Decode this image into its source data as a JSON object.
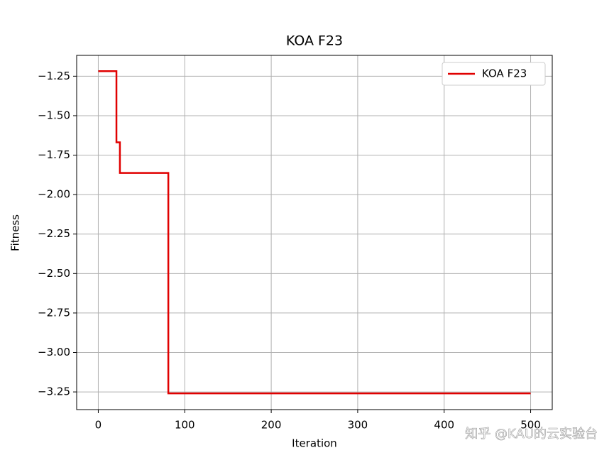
{
  "chart_data": {
    "type": "line",
    "title": "KOA F23",
    "x_label": "Iteration",
    "y_label": "Fitness",
    "x": [
      0,
      21,
      21,
      25,
      25,
      81,
      81,
      500
    ],
    "series": [
      {
        "name": "KOA F23",
        "color": "#e00000",
        "values": [
          -1.218,
          -1.218,
          -1.669,
          -1.669,
          -1.863,
          -1.863,
          -3.259,
          -3.259
        ]
      }
    ],
    "xlim": [
      -25,
      525
    ],
    "ylim": [
      -3.362,
      -1.118
    ],
    "xticks": [
      0,
      100,
      200,
      300,
      400,
      500
    ],
    "yticks": [
      {
        "value": -1.25,
        "label": "−1.25"
      },
      {
        "value": -1.5,
        "label": "−1.50"
      },
      {
        "value": -1.75,
        "label": "−1.75"
      },
      {
        "value": -2.0,
        "label": "−2.00"
      },
      {
        "value": -2.25,
        "label": "−2.25"
      },
      {
        "value": -2.5,
        "label": "−2.50"
      },
      {
        "value": -2.75,
        "label": "−2.75"
      },
      {
        "value": -3.0,
        "label": "−3.00"
      },
      {
        "value": -3.25,
        "label": "−3.25"
      }
    ],
    "grid": true,
    "legend": "upper right",
    "watermark": "知乎 @KAU的云实验台"
  }
}
